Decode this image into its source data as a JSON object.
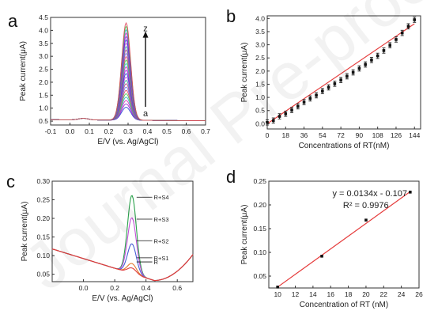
{
  "figure": {
    "watermark": "Journal Pre-proof"
  },
  "chart_data": [
    {
      "panel": "a",
      "type": "line",
      "xlabel": "E/V (vs. Ag/AgCl)",
      "ylabel": "Peak current(μA)",
      "xlim": [
        -0.1,
        0.7
      ],
      "ylim": [
        0.35,
        4.5
      ],
      "xticks": [
        "-0.1",
        "0.0",
        "0.1",
        "0.2",
        "0.3",
        "0.4",
        "0.5",
        "0.6",
        "0.7"
      ],
      "yticks": [
        "0.5",
        "1.0",
        "1.5",
        "2.0",
        "2.5",
        "3.0",
        "3.5",
        "4.0",
        "4.5"
      ],
      "annotations": {
        "arrow_top": "z",
        "arrow_bottom": "a"
      },
      "curves": {
        "count": 26,
        "peak_potential": 0.29,
        "peak_min": 1.05,
        "peak_max": 4.3,
        "baseline": 0.55
      },
      "colors": [
        "#1f3bd1",
        "#8e1fd1",
        "#d11fbf",
        "#27b0c4",
        "#3ec43e",
        "#e0405a",
        "#6a6ae6",
        "#b5338a",
        "#2aa197",
        "#c04dd6"
      ]
    },
    {
      "panel": "b",
      "type": "scatter",
      "xlabel": "Concentrations of RT(nM)",
      "ylabel": "Peak current(μA)",
      "xlim": [
        0,
        150
      ],
      "ylim": [
        -0.2,
        4.1
      ],
      "xticks": [
        "0",
        "18",
        "36",
        "54",
        "72",
        "90",
        "108",
        "126",
        "144"
      ],
      "yticks": [
        "0.0",
        "0.5",
        "1.0",
        "1.5",
        "2.0",
        "2.5",
        "3.0",
        "3.5",
        "4.0"
      ],
      "x": [
        0,
        6,
        12,
        18,
        24,
        30,
        36,
        42,
        48,
        54,
        60,
        66,
        72,
        78,
        84,
        90,
        96,
        102,
        108,
        114,
        120,
        126,
        132,
        138,
        144
      ],
      "y": [
        0.05,
        0.12,
        0.28,
        0.38,
        0.52,
        0.66,
        0.82,
        0.96,
        1.08,
        1.24,
        1.38,
        1.52,
        1.66,
        1.8,
        1.95,
        2.1,
        2.25,
        2.42,
        2.58,
        2.78,
        2.98,
        3.2,
        3.45,
        3.7,
        3.95
      ],
      "error": 0.1,
      "fit": {
        "x": [
          0,
          144
        ],
        "y": [
          0.0,
          3.8
        ]
      }
    },
    {
      "panel": "c",
      "type": "line",
      "xlabel": "E/V (vs. Ag/AgCl)",
      "ylabel": "Peak current(μA)",
      "xlim": [
        -0.2,
        0.7
      ],
      "ylim": [
        0.03,
        0.3
      ],
      "xticks": [
        "0.0",
        "0.2",
        "0.4",
        "0.6"
      ],
      "yticks": [
        "0.05",
        "0.10",
        "0.15",
        "0.20",
        "0.25",
        "0.30"
      ],
      "series": [
        {
          "name": "R+S4",
          "peak": 0.265,
          "color": "#2aa14b"
        },
        {
          "name": "R+S3",
          "peak": 0.205,
          "color": "#c24fd8"
        },
        {
          "name": "R+S2",
          "peak": 0.135,
          "color": "#4a5fd6"
        },
        {
          "name": "R+S1",
          "peak": 0.082,
          "color": "#e2792e"
        },
        {
          "name": "R",
          "peak": 0.07,
          "color": "#e03b3b"
        }
      ],
      "peak_potential": 0.31
    },
    {
      "panel": "d",
      "type": "scatter",
      "xlabel": "Concentration of RT (nM)",
      "ylabel": "Peak current(μA)",
      "xlim": [
        9,
        26
      ],
      "ylim": [
        0.025,
        0.25
      ],
      "xticks": [
        "10",
        "12",
        "14",
        "16",
        "18",
        "20",
        "22",
        "24",
        "26"
      ],
      "yticks": [
        "0.05",
        "0.10",
        "0.15",
        "0.20",
        "0.25"
      ],
      "x": [
        10,
        15,
        20,
        25
      ],
      "y": [
        0.027,
        0.092,
        0.168,
        0.227
      ],
      "fit": {
        "slope": 0.0134,
        "intercept": -0.107
      },
      "equation": "y = 0.0134x - 0.107",
      "r2": "R² = 0.9976"
    }
  ]
}
